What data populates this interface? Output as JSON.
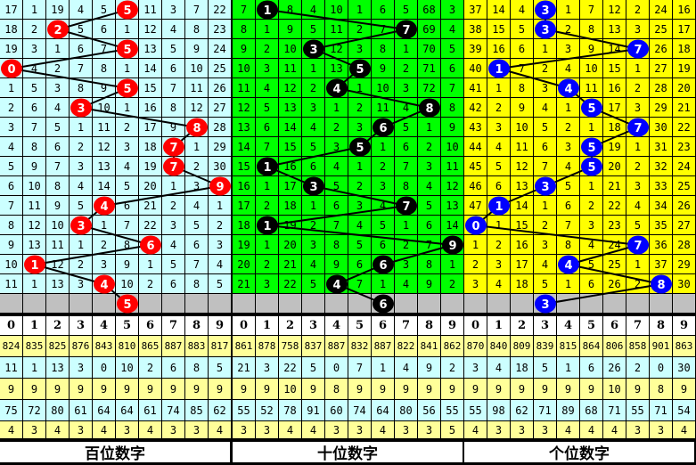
{
  "chart_data": {
    "type": "table",
    "digit_headers": [
      "0",
      "1",
      "2",
      "3",
      "4",
      "5",
      "6",
      "7",
      "8",
      "9"
    ],
    "panels": [
      {
        "title": "百位数字",
        "bg": "#ccffff",
        "ball_color": "#ff0000",
        "draws": [
          5,
          2,
          5,
          0,
          5,
          3,
          8,
          7,
          7,
          9,
          4,
          3,
          6,
          1,
          4
        ],
        "next": 5,
        "rows": [
          [
            17,
            1,
            19,
            4,
            5,
            5,
            11,
            3,
            7,
            22
          ],
          [
            18,
            2,
            2,
            5,
            6,
            1,
            12,
            4,
            8,
            23
          ],
          [
            19,
            3,
            1,
            6,
            7,
            5,
            13,
            5,
            9,
            24
          ],
          [
            0,
            4,
            2,
            7,
            8,
            1,
            14,
            6,
            10,
            25
          ],
          [
            1,
            5,
            3,
            8,
            9,
            5,
            15,
            7,
            11,
            26
          ],
          [
            2,
            6,
            4,
            3,
            10,
            1,
            16,
            8,
            12,
            27
          ],
          [
            3,
            7,
            5,
            1,
            11,
            2,
            17,
            9,
            8,
            28
          ],
          [
            4,
            8,
            6,
            2,
            12,
            3,
            18,
            7,
            1,
            29
          ],
          [
            5,
            9,
            7,
            3,
            13,
            4,
            19,
            7,
            2,
            30
          ],
          [
            6,
            10,
            8,
            4,
            14,
            5,
            20,
            1,
            3,
            9
          ],
          [
            7,
            11,
            9,
            5,
            4,
            6,
            21,
            2,
            4,
            1
          ],
          [
            8,
            12,
            10,
            3,
            1,
            7,
            22,
            3,
            5,
            2
          ],
          [
            9,
            13,
            11,
            1,
            2,
            8,
            6,
            4,
            6,
            3
          ],
          [
            10,
            1,
            12,
            2,
            3,
            9,
            1,
            5,
            7,
            4
          ],
          [
            11,
            1,
            13,
            3,
            4,
            10,
            2,
            6,
            8,
            5
          ]
        ],
        "stats": [
          [
            "824",
            "835",
            "825",
            "876",
            "843",
            "810",
            "865",
            "887",
            "883",
            "817"
          ],
          [
            "11",
            "1",
            "13",
            "3",
            "0",
            "10",
            "2",
            "6",
            "8",
            "5"
          ],
          [
            "9",
            "9",
            "9",
            "9",
            "9",
            "9",
            "9",
            "9",
            "9",
            "9"
          ],
          [
            "75",
            "72",
            "80",
            "61",
            "64",
            "64",
            "61",
            "74",
            "85",
            "62"
          ],
          [
            "4",
            "3",
            "4",
            "3",
            "4",
            "3",
            "4",
            "3",
            "3",
            "4"
          ]
        ]
      },
      {
        "title": "十位数字",
        "bg": "#00ff00",
        "ball_color": "#000000",
        "draws": [
          1,
          7,
          3,
          5,
          4,
          8,
          6,
          5,
          1,
          3,
          7,
          1,
          9,
          6,
          4
        ],
        "next": 6,
        "rows": [
          [
            7,
            1,
            8,
            4,
            10,
            1,
            6,
            5,
            68,
            3
          ],
          [
            8,
            1,
            9,
            5,
            11,
            2,
            7,
            7,
            69,
            4
          ],
          [
            9,
            2,
            10,
            3,
            12,
            3,
            8,
            1,
            70,
            5
          ],
          [
            10,
            3,
            11,
            1,
            13,
            5,
            9,
            2,
            71,
            6
          ],
          [
            11,
            4,
            12,
            2,
            4,
            1,
            10,
            3,
            72,
            7
          ],
          [
            12,
            5,
            13,
            3,
            1,
            2,
            11,
            4,
            8,
            8
          ],
          [
            13,
            6,
            14,
            4,
            2,
            3,
            6,
            5,
            1,
            9
          ],
          [
            14,
            7,
            15,
            5,
            3,
            5,
            1,
            6,
            2,
            10
          ],
          [
            15,
            1,
            16,
            6,
            4,
            1,
            2,
            7,
            3,
            11
          ],
          [
            16,
            1,
            17,
            3,
            5,
            2,
            3,
            8,
            4,
            12
          ],
          [
            17,
            2,
            18,
            1,
            6,
            3,
            4,
            7,
            5,
            13
          ],
          [
            18,
            1,
            19,
            2,
            7,
            4,
            5,
            1,
            6,
            14
          ],
          [
            19,
            1,
            20,
            3,
            8,
            5,
            6,
            2,
            7,
            9
          ],
          [
            20,
            2,
            21,
            4,
            9,
            6,
            6,
            3,
            8,
            1
          ],
          [
            21,
            3,
            22,
            5,
            4,
            7,
            1,
            4,
            9,
            2
          ]
        ],
        "stats": [
          [
            "861",
            "878",
            "758",
            "837",
            "887",
            "832",
            "887",
            "822",
            "841",
            "862"
          ],
          [
            "21",
            "3",
            "22",
            "5",
            "0",
            "7",
            "1",
            "4",
            "9",
            "2"
          ],
          [
            "9",
            "9",
            "10",
            "9",
            "8",
            "9",
            "9",
            "9",
            "9",
            "9"
          ],
          [
            "55",
            "52",
            "78",
            "91",
            "60",
            "74",
            "64",
            "80",
            "56",
            "55"
          ],
          [
            "3",
            "3",
            "4",
            "4",
            "3",
            "3",
            "4",
            "3",
            "3",
            "5"
          ]
        ]
      },
      {
        "title": "个位数字",
        "bg": "#ffff00",
        "ball_color": "#0000ff",
        "draws": [
          3,
          3,
          7,
          1,
          4,
          5,
          7,
          5,
          5,
          3,
          1,
          0,
          7,
          4,
          8
        ],
        "next": 3,
        "rows": [
          [
            37,
            14,
            4,
            3,
            1,
            7,
            12,
            2,
            24,
            16
          ],
          [
            38,
            15,
            5,
            3,
            2,
            8,
            13,
            3,
            25,
            17
          ],
          [
            39,
            16,
            6,
            1,
            3,
            9,
            14,
            7,
            26,
            18
          ],
          [
            40,
            1,
            7,
            2,
            4,
            10,
            15,
            1,
            27,
            19
          ],
          [
            41,
            1,
            8,
            3,
            4,
            11,
            16,
            2,
            28,
            20
          ],
          [
            42,
            2,
            9,
            4,
            1,
            5,
            17,
            3,
            29,
            21
          ],
          [
            43,
            3,
            10,
            5,
            2,
            1,
            18,
            7,
            30,
            22
          ],
          [
            44,
            4,
            11,
            6,
            3,
            5,
            19,
            1,
            31,
            23
          ],
          [
            45,
            5,
            12,
            7,
            4,
            5,
            20,
            2,
            32,
            24
          ],
          [
            46,
            6,
            13,
            3,
            5,
            1,
            21,
            3,
            33,
            25
          ],
          [
            47,
            1,
            14,
            1,
            6,
            2,
            22,
            4,
            34,
            26
          ],
          [
            0,
            1,
            15,
            2,
            7,
            3,
            23,
            5,
            35,
            27
          ],
          [
            1,
            2,
            16,
            3,
            8,
            4,
            24,
            7,
            36,
            28
          ],
          [
            2,
            3,
            17,
            4,
            4,
            5,
            25,
            1,
            37,
            29
          ],
          [
            3,
            4,
            18,
            5,
            1,
            6,
            26,
            2,
            8,
            30
          ]
        ],
        "stats": [
          [
            "870",
            "840",
            "809",
            "839",
            "815",
            "864",
            "806",
            "858",
            "901",
            "863"
          ],
          [
            "3",
            "4",
            "18",
            "5",
            "1",
            "6",
            "26",
            "2",
            "0",
            "30"
          ],
          [
            "9",
            "9",
            "9",
            "9",
            "9",
            "9",
            "10",
            "9",
            "8",
            "9"
          ],
          [
            "55",
            "98",
            "62",
            "71",
            "89",
            "68",
            "71",
            "55",
            "71",
            "54"
          ],
          [
            "4",
            "3",
            "3",
            "3",
            "4",
            "4",
            "4",
            "3",
            "3",
            "4"
          ]
        ]
      }
    ],
    "colors": {
      "grey_row": "#c0c0c0",
      "stat_yellow": "#ffff99",
      "stat_cyan": "#ccffff"
    }
  }
}
